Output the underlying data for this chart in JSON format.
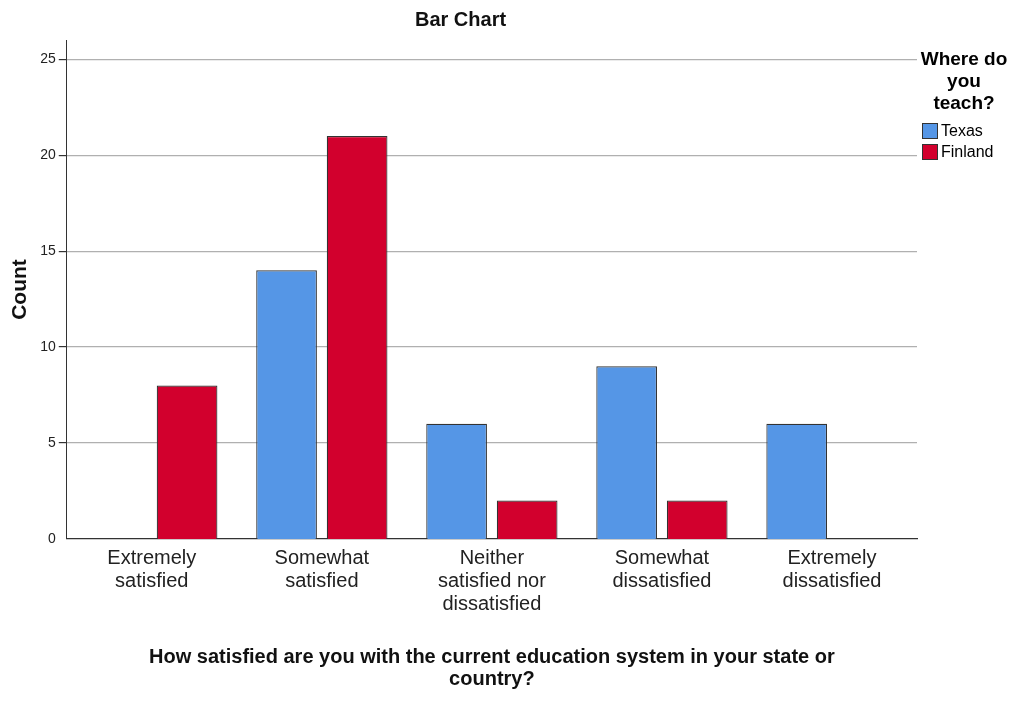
{
  "chart_data": {
    "type": "bar",
    "title": "Bar Chart",
    "xlabel": "How satisfied are you with the current education system in your state or country?",
    "ylabel": "Count",
    "legend_title": "Where do you teach?",
    "categories": [
      "Extremely satisfied",
      "Somewhat satisfied",
      "Neither satisfied nor dissatisfied",
      "Somewhat dissatisfied",
      "Extremely dissatisfied"
    ],
    "series": [
      {
        "name": "Texas",
        "color": "#5596e6",
        "values": [
          null,
          14,
          6,
          9,
          6
        ]
      },
      {
        "name": "Finland",
        "color": "#d2002d",
        "values": [
          8,
          21,
          2,
          2,
          null
        ]
      }
    ],
    "ylim": [
      0,
      26
    ],
    "yticks": [
      0,
      5,
      10,
      15,
      20,
      25
    ],
    "grid": "y",
    "legend": "top right"
  }
}
